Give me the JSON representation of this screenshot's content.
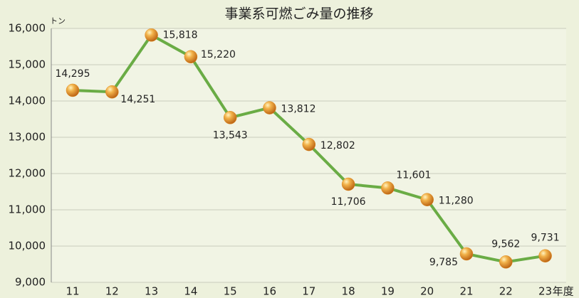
{
  "chart_data": {
    "type": "line",
    "title": "事業系可燃ごみ量の推移",
    "y_unit": "トン",
    "x_unit": "年度",
    "categories": [
      "11",
      "12",
      "13",
      "14",
      "15",
      "16",
      "17",
      "18",
      "19",
      "20",
      "21",
      "22",
      "23"
    ],
    "values": [
      14295,
      14251,
      15818,
      15220,
      13543,
      13812,
      12802,
      11706,
      11601,
      11280,
      9785,
      9562,
      9731
    ],
    "value_labels": [
      "14,295",
      "14,251",
      "15,818",
      "15,220",
      "13,543",
      "13,812",
      "12,802",
      "11,706",
      "11,601",
      "11,280",
      "9,785",
      "9,562",
      "9,731"
    ],
    "color": "#6aac45",
    "marker_color": "#e08a1e",
    "ylim": [
      9000,
      16000
    ],
    "yticks": [
      {
        "value": 9000,
        "label": "9,000"
      },
      {
        "value": 10000,
        "label": "10,000"
      },
      {
        "value": 11000,
        "label": "11,000"
      },
      {
        "value": 12000,
        "label": "12,000"
      },
      {
        "value": 13000,
        "label": "13,000"
      },
      {
        "value": 14000,
        "label": "14,000"
      },
      {
        "value": 15000,
        "label": "15,000"
      },
      {
        "value": 16000,
        "label": "16,000"
      }
    ],
    "grid": true
  }
}
